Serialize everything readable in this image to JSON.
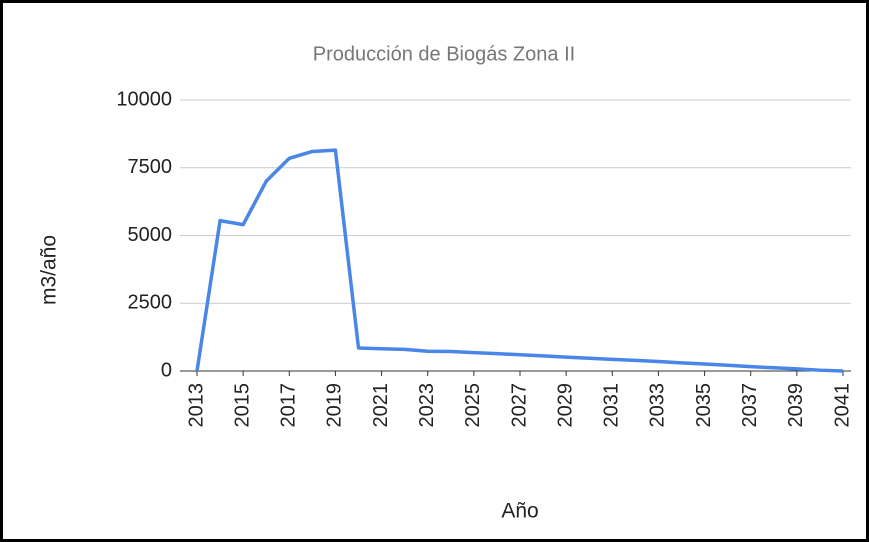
{
  "chart_data": {
    "type": "line",
    "title": "Producción de Biogás Zona II",
    "x_label": "Año",
    "y_label": "m3/año",
    "x": [
      2013,
      2014,
      2015,
      2016,
      2017,
      2018,
      2019,
      2020,
      2021,
      2022,
      2023,
      2024,
      2025,
      2026,
      2027,
      2028,
      2029,
      2030,
      2031,
      2032,
      2033,
      2034,
      2035,
      2036,
      2037,
      2038,
      2039,
      2040,
      2041
    ],
    "series": [
      {
        "name": "m3/año",
        "color": "#4a86e8",
        "values": [
          0,
          5550,
          5400,
          7000,
          7850,
          8100,
          8150,
          850,
          820,
          800,
          730,
          720,
          680,
          640,
          600,
          560,
          510,
          470,
          430,
          390,
          350,
          300,
          260,
          210,
          160,
          120,
          80,
          30,
          0
        ]
      }
    ],
    "xlim": [
      2013,
      2041
    ],
    "xticks": [
      2013,
      2015,
      2017,
      2019,
      2021,
      2023,
      2025,
      2027,
      2029,
      2031,
      2033,
      2035,
      2037,
      2039,
      2041
    ],
    "ylim": [
      0,
      10000
    ],
    "yticks": [
      0,
      2500,
      5000,
      7500,
      10000
    ],
    "grid": true
  }
}
